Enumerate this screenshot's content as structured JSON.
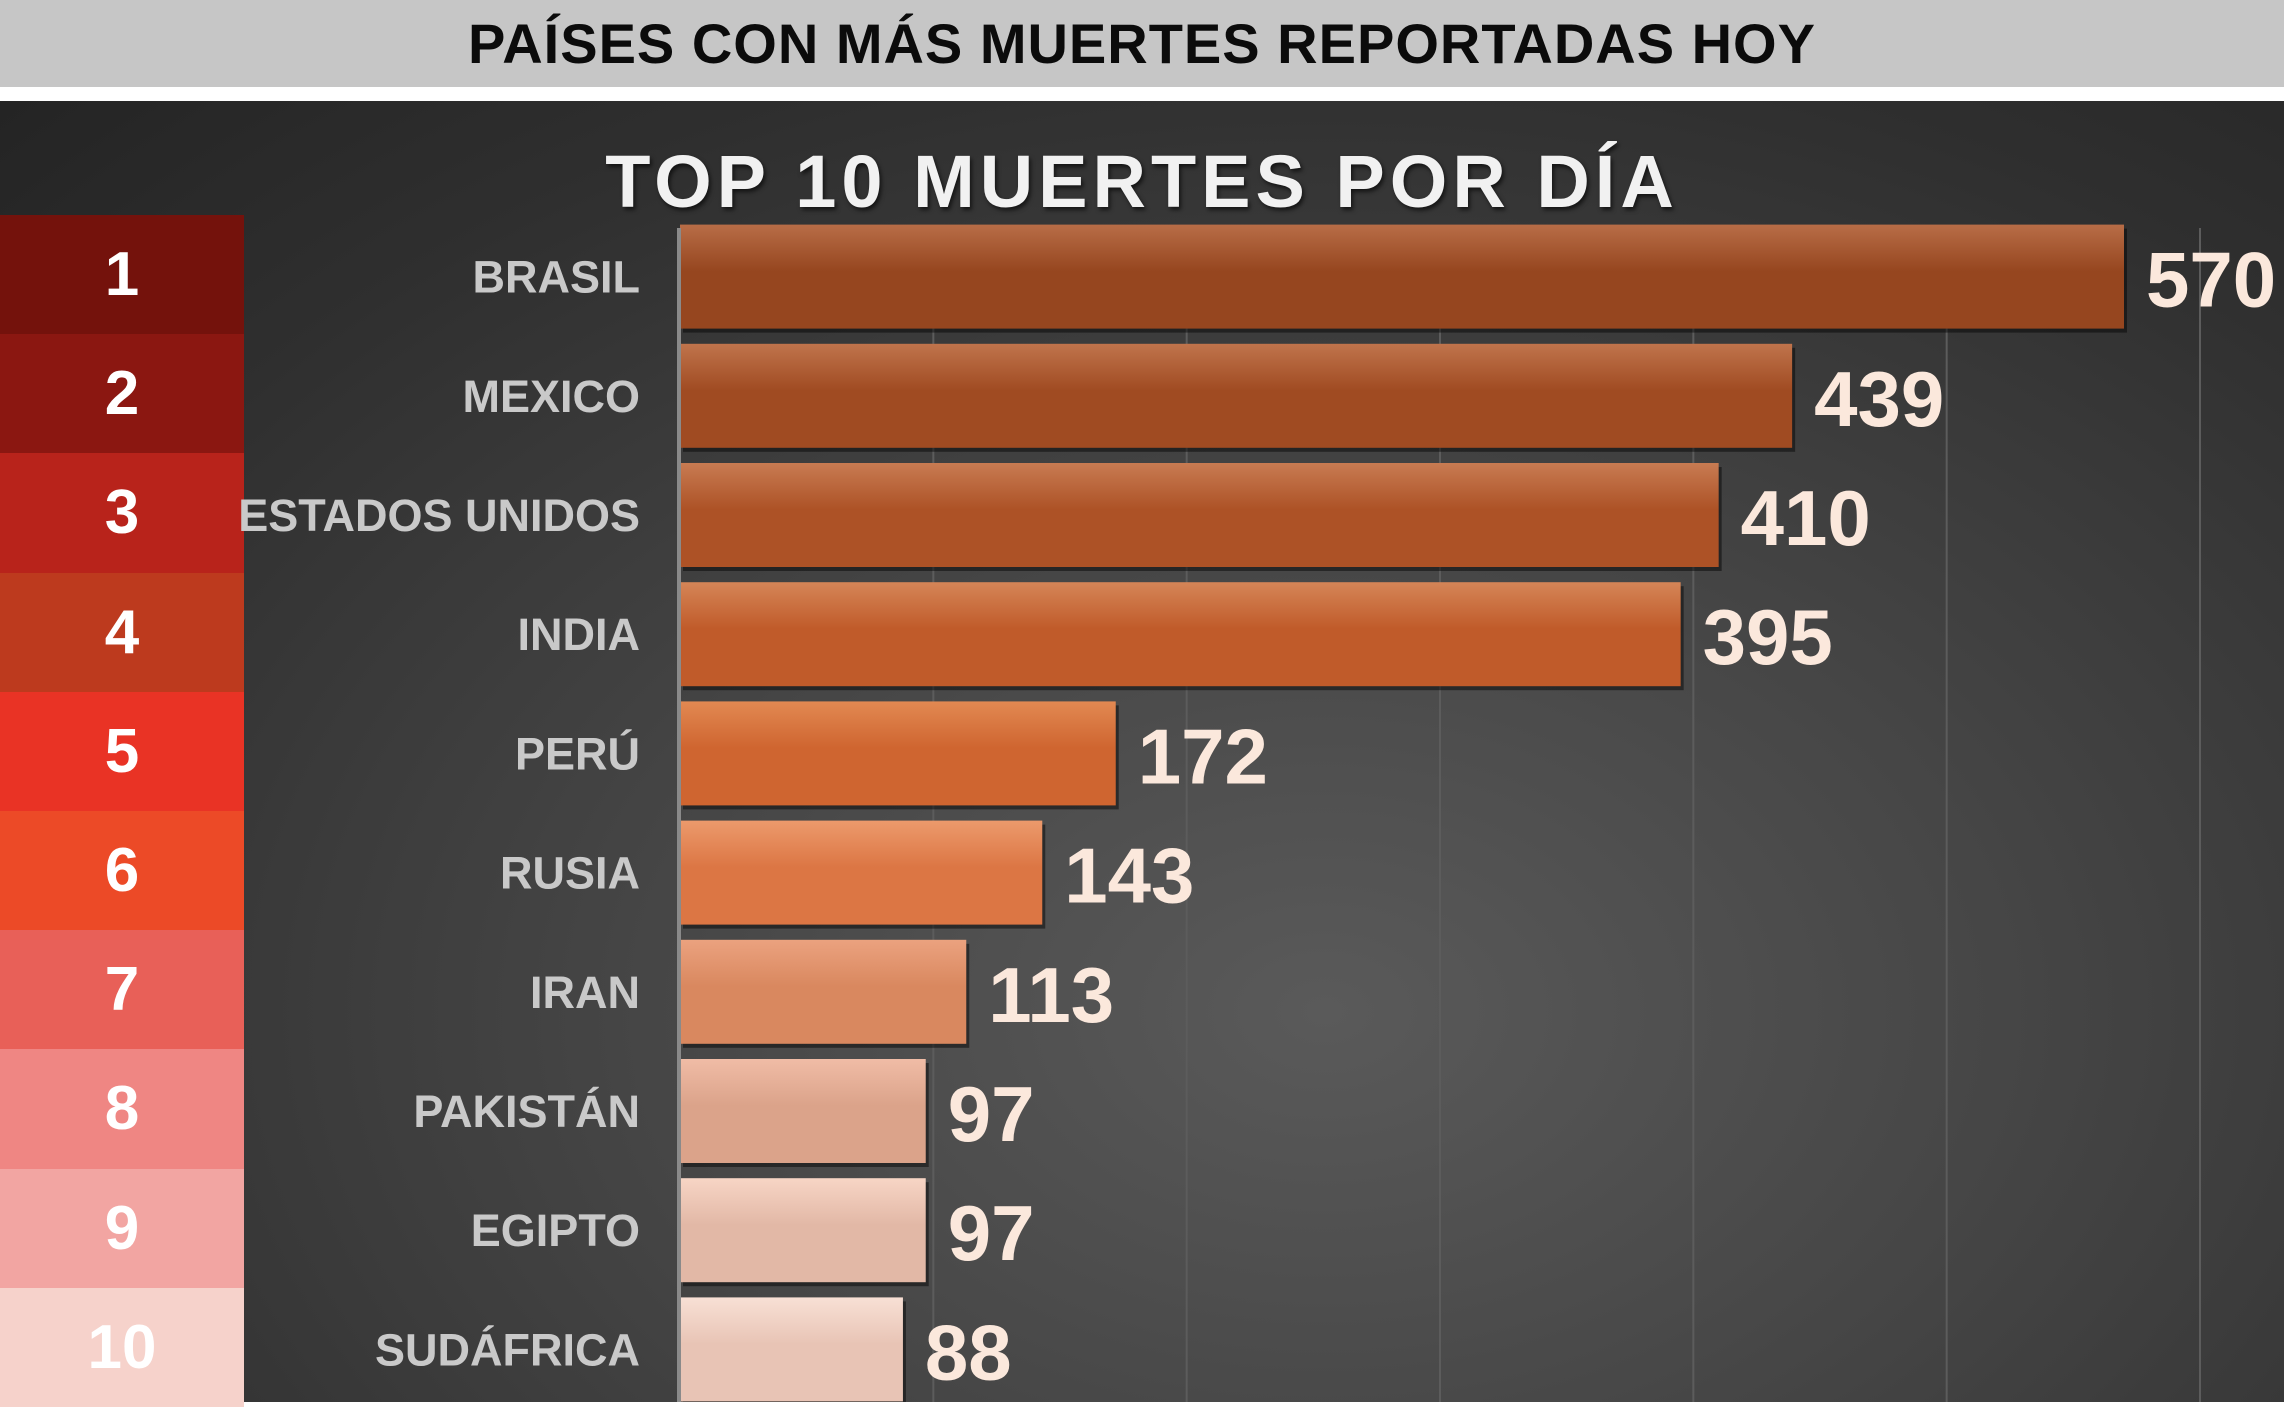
{
  "header": {
    "title": "PAÍSES CON MÁS MUERTES REPORTADAS HOY"
  },
  "ranks": [
    {
      "label": "1",
      "color": "#74120c"
    },
    {
      "label": "2",
      "color": "#8b1711"
    },
    {
      "label": "3",
      "color": "#b8231b"
    },
    {
      "label": "4",
      "color": "#bd3a1e"
    },
    {
      "label": "5",
      "color": "#e93325"
    },
    {
      "label": "6",
      "color": "#ec4a27"
    },
    {
      "label": "7",
      "color": "#e86058"
    },
    {
      "label": "8",
      "color": "#ef8683"
    },
    {
      "label": "9",
      "color": "#f2a5a2"
    },
    {
      "label": "10",
      "color": "#f6d2cb"
    }
  ],
  "chart_data": {
    "type": "bar",
    "orientation": "horizontal",
    "title": "TOP 10 MUERTES POR DÍA",
    "categories": [
      "BRASIL",
      "MEXICO",
      "ESTADOS UNIDOS",
      "INDIA",
      "PERÚ",
      "RUSIA",
      "IRAN",
      "PAKISTÁN",
      "EGIPTO",
      "SUDÁFRICA"
    ],
    "values": [
      570,
      439,
      410,
      395,
      172,
      143,
      113,
      97,
      97,
      88
    ],
    "data_labels": [
      "570",
      "439",
      "410",
      "395",
      "172",
      "143",
      "113",
      "97",
      "97",
      "88"
    ],
    "xlim": [
      0,
      600
    ],
    "grid": true,
    "bar_colors": [
      [
        "#b86d47",
        "#96461f"
      ],
      [
        "#c0744c",
        "#a04b22"
      ],
      [
        "#c87b52",
        "#ad5226"
      ],
      [
        "#d58557",
        "#c05b2a"
      ],
      [
        "#e28952",
        "#cf6530"
      ],
      [
        "#ec9a6c",
        "#dc7644"
      ],
      [
        "#eba27f",
        "#d9885f"
      ],
      [
        "#f0bca6",
        "#dba38a"
      ],
      [
        "#f7d5c5",
        "#e2b8a6"
      ],
      [
        "#f8e0d5",
        "#e8c4b5"
      ]
    ],
    "category_label_color": "#c9c9c9",
    "value_label_color": "#fbe8dc"
  }
}
